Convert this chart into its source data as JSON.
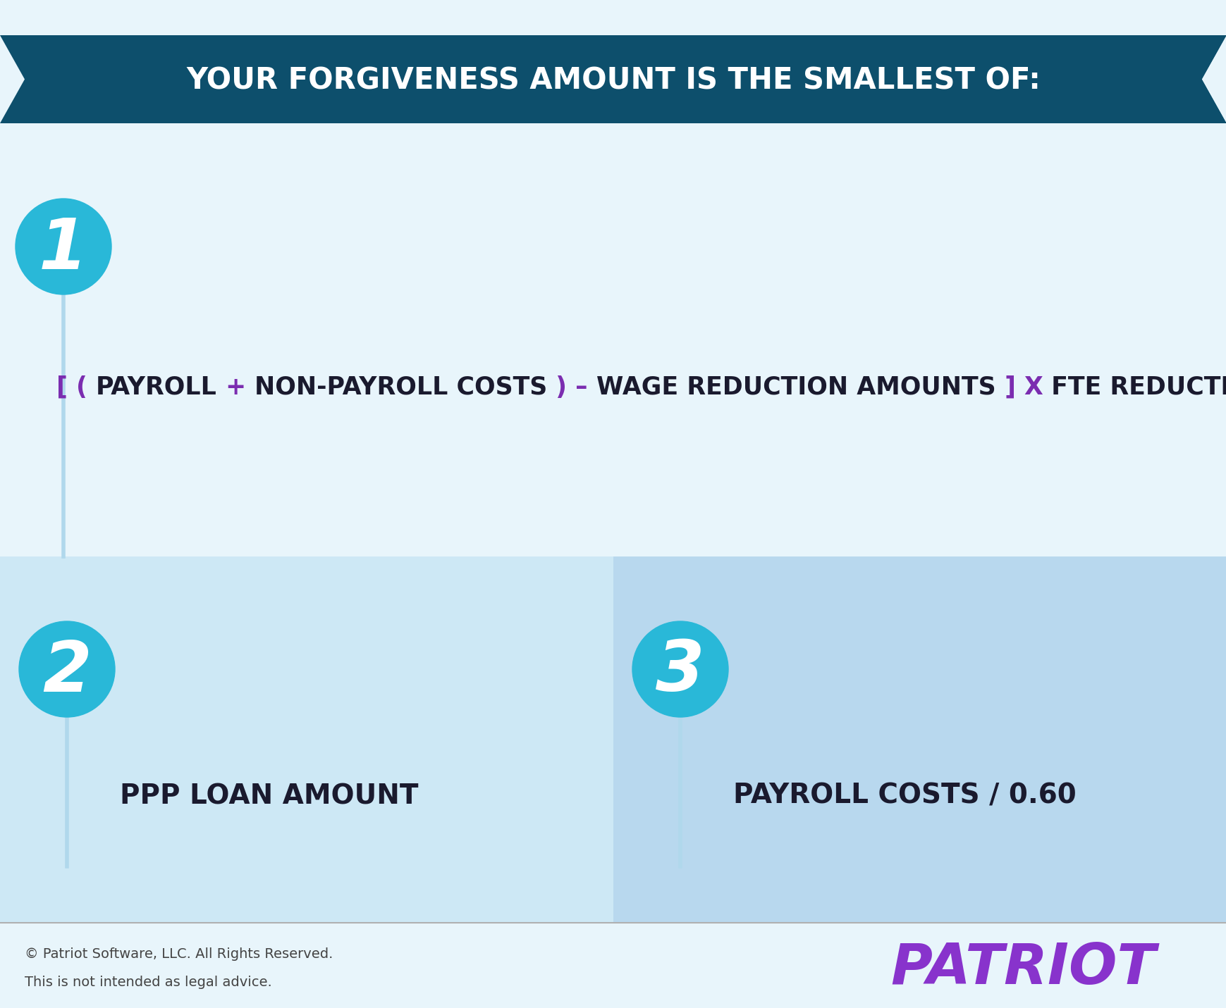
{
  "bg_color": "#e8f5fb",
  "banner_color": "#0d4f6c",
  "banner_text": "YOUR FORGIVENESS AMOUNT IS THE SMALLEST OF:",
  "banner_text_color": "#ffffff",
  "circle_color": "#29b8d8",
  "circle_text_color": "#ffffff",
  "line_color": "#b0d8ec",
  "formula_bracket_color": "#7b2db0",
  "formula_main_color": "#1a1a2e",
  "formula_x_color": "#7b2db0",
  "item2_text": "PPP LOAN AMOUNT",
  "item3_text": "PAYROLL COSTS / 0.60",
  "lower_bg_left": "#cde8f5",
  "lower_bg_right": "#b8d8ee",
  "footer_text1": "© Patriot Software, LLC. All Rights Reserved.",
  "footer_text2": "This is not intended as legal advice.",
  "footer_text_color": "#444444",
  "patriot_color": "#8833cc",
  "patriot_text": "PATRIOT",
  "item_text_color": "#1a1a2e",
  "segments": [
    [
      "[ ( ",
      "#7b2db0"
    ],
    [
      "PAYROLL",
      "#1a1a2e"
    ],
    [
      " + ",
      "#7b2db0"
    ],
    [
      "NON-PAYROLL COSTS",
      "#1a1a2e"
    ],
    [
      " ) – ",
      "#7b2db0"
    ],
    [
      "WAGE REDUCTION AMOUNTS",
      "#1a1a2e"
    ],
    [
      " ] ",
      "#7b2db0"
    ],
    [
      "X",
      "#7b2db0"
    ],
    [
      " FTE REDUCTION QUOTIENT",
      "#1a1a2e"
    ]
  ]
}
